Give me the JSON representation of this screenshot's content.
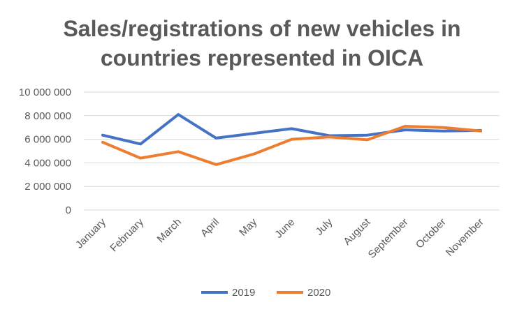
{
  "chart_data": {
    "type": "line",
    "title_lines": [
      "Sales/registrations of new vehicles in",
      "countries represented in OICA"
    ],
    "categories": [
      "January",
      "February",
      "March",
      "April",
      "May",
      "June",
      "July",
      "August",
      "September",
      "October",
      "November"
    ],
    "series": [
      {
        "name": "2019",
        "color": "#4472C4",
        "values": [
          6350000,
          5600000,
          8100000,
          6100000,
          6500000,
          6900000,
          6300000,
          6350000,
          6800000,
          6700000,
          6750000
        ]
      },
      {
        "name": "2020",
        "color": "#ED7D31",
        "values": [
          5750000,
          4400000,
          4950000,
          3850000,
          4750000,
          6000000,
          6200000,
          5950000,
          7100000,
          7000000,
          6700000
        ]
      }
    ],
    "ylim": [
      0,
      10000000
    ],
    "y_ticks": [
      0,
      2000000,
      4000000,
      6000000,
      8000000,
      10000000
    ],
    "y_tick_labels": [
      "0",
      "2 000 000",
      "4 000 000",
      "6 000 000",
      "8 000 000",
      "10 000 000"
    ],
    "grid": true,
    "legend_position": "bottom",
    "gridline_color": "#D9D9D9"
  }
}
